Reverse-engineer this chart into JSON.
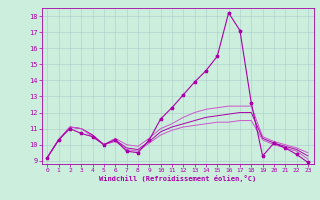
{
  "xlabel": "Windchill (Refroidissement éolien,°C)",
  "xlim": [
    -0.5,
    23.5
  ],
  "ylim": [
    8.8,
    18.5
  ],
  "yticks": [
    9,
    10,
    11,
    12,
    13,
    14,
    15,
    16,
    17,
    18
  ],
  "xticks": [
    0,
    1,
    2,
    3,
    4,
    5,
    6,
    7,
    8,
    9,
    10,
    11,
    12,
    13,
    14,
    15,
    16,
    17,
    18,
    19,
    20,
    21,
    22,
    23
  ],
  "background_color": "#cceedd",
  "grid_color": "#aacccc",
  "line_color": "#aa00aa",
  "line_color2": "#cc55cc",
  "series1": {
    "x": [
      0,
      1,
      2,
      3,
      4,
      5,
      6,
      7,
      8,
      9,
      10,
      11,
      12,
      13,
      14,
      15,
      16,
      17,
      18,
      19,
      20,
      21,
      22,
      23
    ],
    "y": [
      9.2,
      10.3,
      11.0,
      10.7,
      10.5,
      10.0,
      10.3,
      9.6,
      9.5,
      10.3,
      11.6,
      12.3,
      13.1,
      13.9,
      14.6,
      15.5,
      18.2,
      17.1,
      12.6,
      9.3,
      10.1,
      9.8,
      9.4,
      8.9
    ]
  },
  "series2": {
    "x": [
      0,
      1,
      2,
      3,
      4,
      5,
      6,
      7,
      8,
      9,
      10,
      11,
      12,
      13,
      14,
      15,
      16,
      17,
      18,
      19,
      20,
      21,
      22,
      23
    ],
    "y": [
      9.2,
      10.3,
      11.1,
      11.0,
      10.6,
      10.0,
      10.4,
      10.0,
      9.9,
      10.4,
      11.0,
      11.3,
      11.7,
      12.0,
      12.2,
      12.3,
      12.4,
      12.4,
      12.4,
      10.5,
      10.2,
      10.0,
      9.8,
      9.5
    ]
  },
  "series3": {
    "x": [
      0,
      1,
      2,
      3,
      4,
      5,
      6,
      7,
      8,
      9,
      10,
      11,
      12,
      13,
      14,
      15,
      16,
      17,
      18,
      19,
      20,
      21,
      22,
      23
    ],
    "y": [
      9.2,
      10.3,
      11.1,
      11.0,
      10.6,
      10.0,
      10.3,
      9.8,
      9.7,
      10.2,
      10.8,
      11.1,
      11.3,
      11.5,
      11.7,
      11.8,
      11.9,
      12.0,
      12.0,
      10.4,
      10.1,
      9.9,
      9.7,
      9.3
    ]
  },
  "series4": {
    "x": [
      0,
      1,
      2,
      3,
      4,
      5,
      6,
      7,
      8,
      9,
      10,
      11,
      12,
      13,
      14,
      15,
      16,
      17,
      18,
      19,
      20,
      21,
      22,
      23
    ],
    "y": [
      9.2,
      10.3,
      11.1,
      11.0,
      10.5,
      10.0,
      10.2,
      9.7,
      9.6,
      10.1,
      10.6,
      10.9,
      11.1,
      11.2,
      11.3,
      11.4,
      11.4,
      11.5,
      11.5,
      10.3,
      10.0,
      9.8,
      9.6,
      9.1
    ]
  }
}
